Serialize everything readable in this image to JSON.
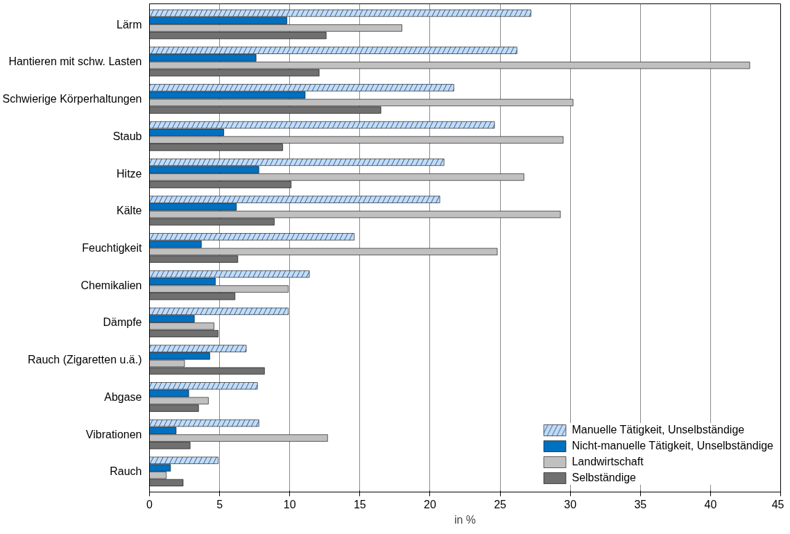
{
  "chart_data": {
    "type": "bar",
    "orientation": "horizontal",
    "xlabel": "in %",
    "categories": [
      "Lärm",
      "Hantieren mit schw. Lasten",
      "Schwierige Körperhaltungen",
      "Staub",
      "Hitze",
      "Kälte",
      "Feuchtigkeit",
      "Chemikalien",
      "Dämpfe",
      "Rauch (Zigaretten u.ä.)",
      "Abgase",
      "Vibrationen",
      "Rauch"
    ],
    "series": [
      {
        "name": "Manuelle Tätigkeit, Unselbständige",
        "color": "#c6dbf0",
        "values": [
          27.2,
          26.2,
          21.7,
          24.6,
          21.0,
          20.7,
          14.6,
          11.4,
          9.9,
          6.9,
          7.7,
          7.8,
          4.9
        ]
      },
      {
        "name": "Nicht-manuelle Tätigkeit, Unselbständige",
        "color": "#0070c0",
        "values": [
          9.8,
          7.6,
          11.1,
          5.3,
          7.8,
          6.2,
          3.7,
          4.7,
          3.2,
          4.3,
          2.8,
          1.9,
          1.5
        ]
      },
      {
        "name": "Landwirtschaft",
        "color": "#c0c0c0",
        "values": [
          18.0,
          42.8,
          30.2,
          29.5,
          26.7,
          29.3,
          24.8,
          9.9,
          4.6,
          2.5,
          4.2,
          12.7,
          1.2
        ]
      },
      {
        "name": "Selbständige",
        "color": "#707070",
        "values": [
          12.6,
          12.1,
          16.5,
          9.5,
          10.1,
          8.9,
          6.3,
          6.1,
          4.9,
          8.2,
          3.5,
          2.9,
          2.4
        ]
      }
    ],
    "xlim": [
      0,
      45
    ],
    "xticks": [
      0,
      5,
      10,
      15,
      20,
      25,
      30,
      35,
      40,
      45
    ],
    "grid": "x",
    "legend": "bottom right"
  }
}
